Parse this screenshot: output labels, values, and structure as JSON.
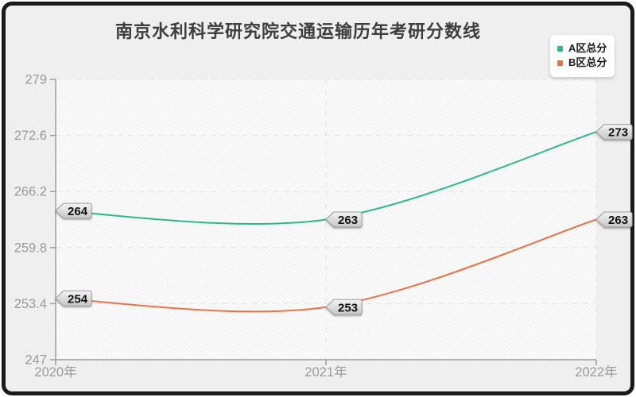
{
  "window": {
    "outer_background": "#ffffff",
    "frame_color": "#1a1a1a",
    "background": "#efefef"
  },
  "chart_data": {
    "type": "line",
    "title": "南京水利科学研究院交通运输历年考研分数线",
    "categories": [
      "2020年",
      "2021年",
      "2022年"
    ],
    "series": [
      {
        "name": "A区总分",
        "color": "#2bb98c",
        "values": [
          264,
          263,
          273
        ]
      },
      {
        "name": "B区总分",
        "color": "#e87346",
        "values": [
          254,
          253,
          263
        ]
      }
    ],
    "ylim": [
      247,
      279
    ],
    "yticks": [
      "247",
      "253.4",
      "259.8",
      "266.2",
      "272.6",
      "279"
    ],
    "smooth": true,
    "grid": {
      "horizontal": "dashed",
      "vertical": "dashed-at-categories",
      "plot_background": "diagonal-hatch"
    },
    "legend_position": "top-right",
    "point_labels": {
      "style": "gray-arrow-tag",
      "shown": [
        "264",
        "263",
        "273",
        "254",
        "253",
        "263"
      ]
    }
  },
  "styles": {
    "axis_color": "#999999",
    "tick_label_color": "#9a9a9a",
    "grid_color": "#e3e3e3",
    "plot_bg": "#fcfcfc",
    "hatch_color": "#ededed",
    "series_line_width": 2,
    "tag_fill_top": "#f4f4f4",
    "tag_fill_bottom": "#c6c6c6",
    "tag_border": "#9c9c9c",
    "tag_text_color": "#111111",
    "title_color": "#3d3d3d",
    "legend_bg": "#ffffff",
    "legend_text_color": "#1a1a1a"
  }
}
